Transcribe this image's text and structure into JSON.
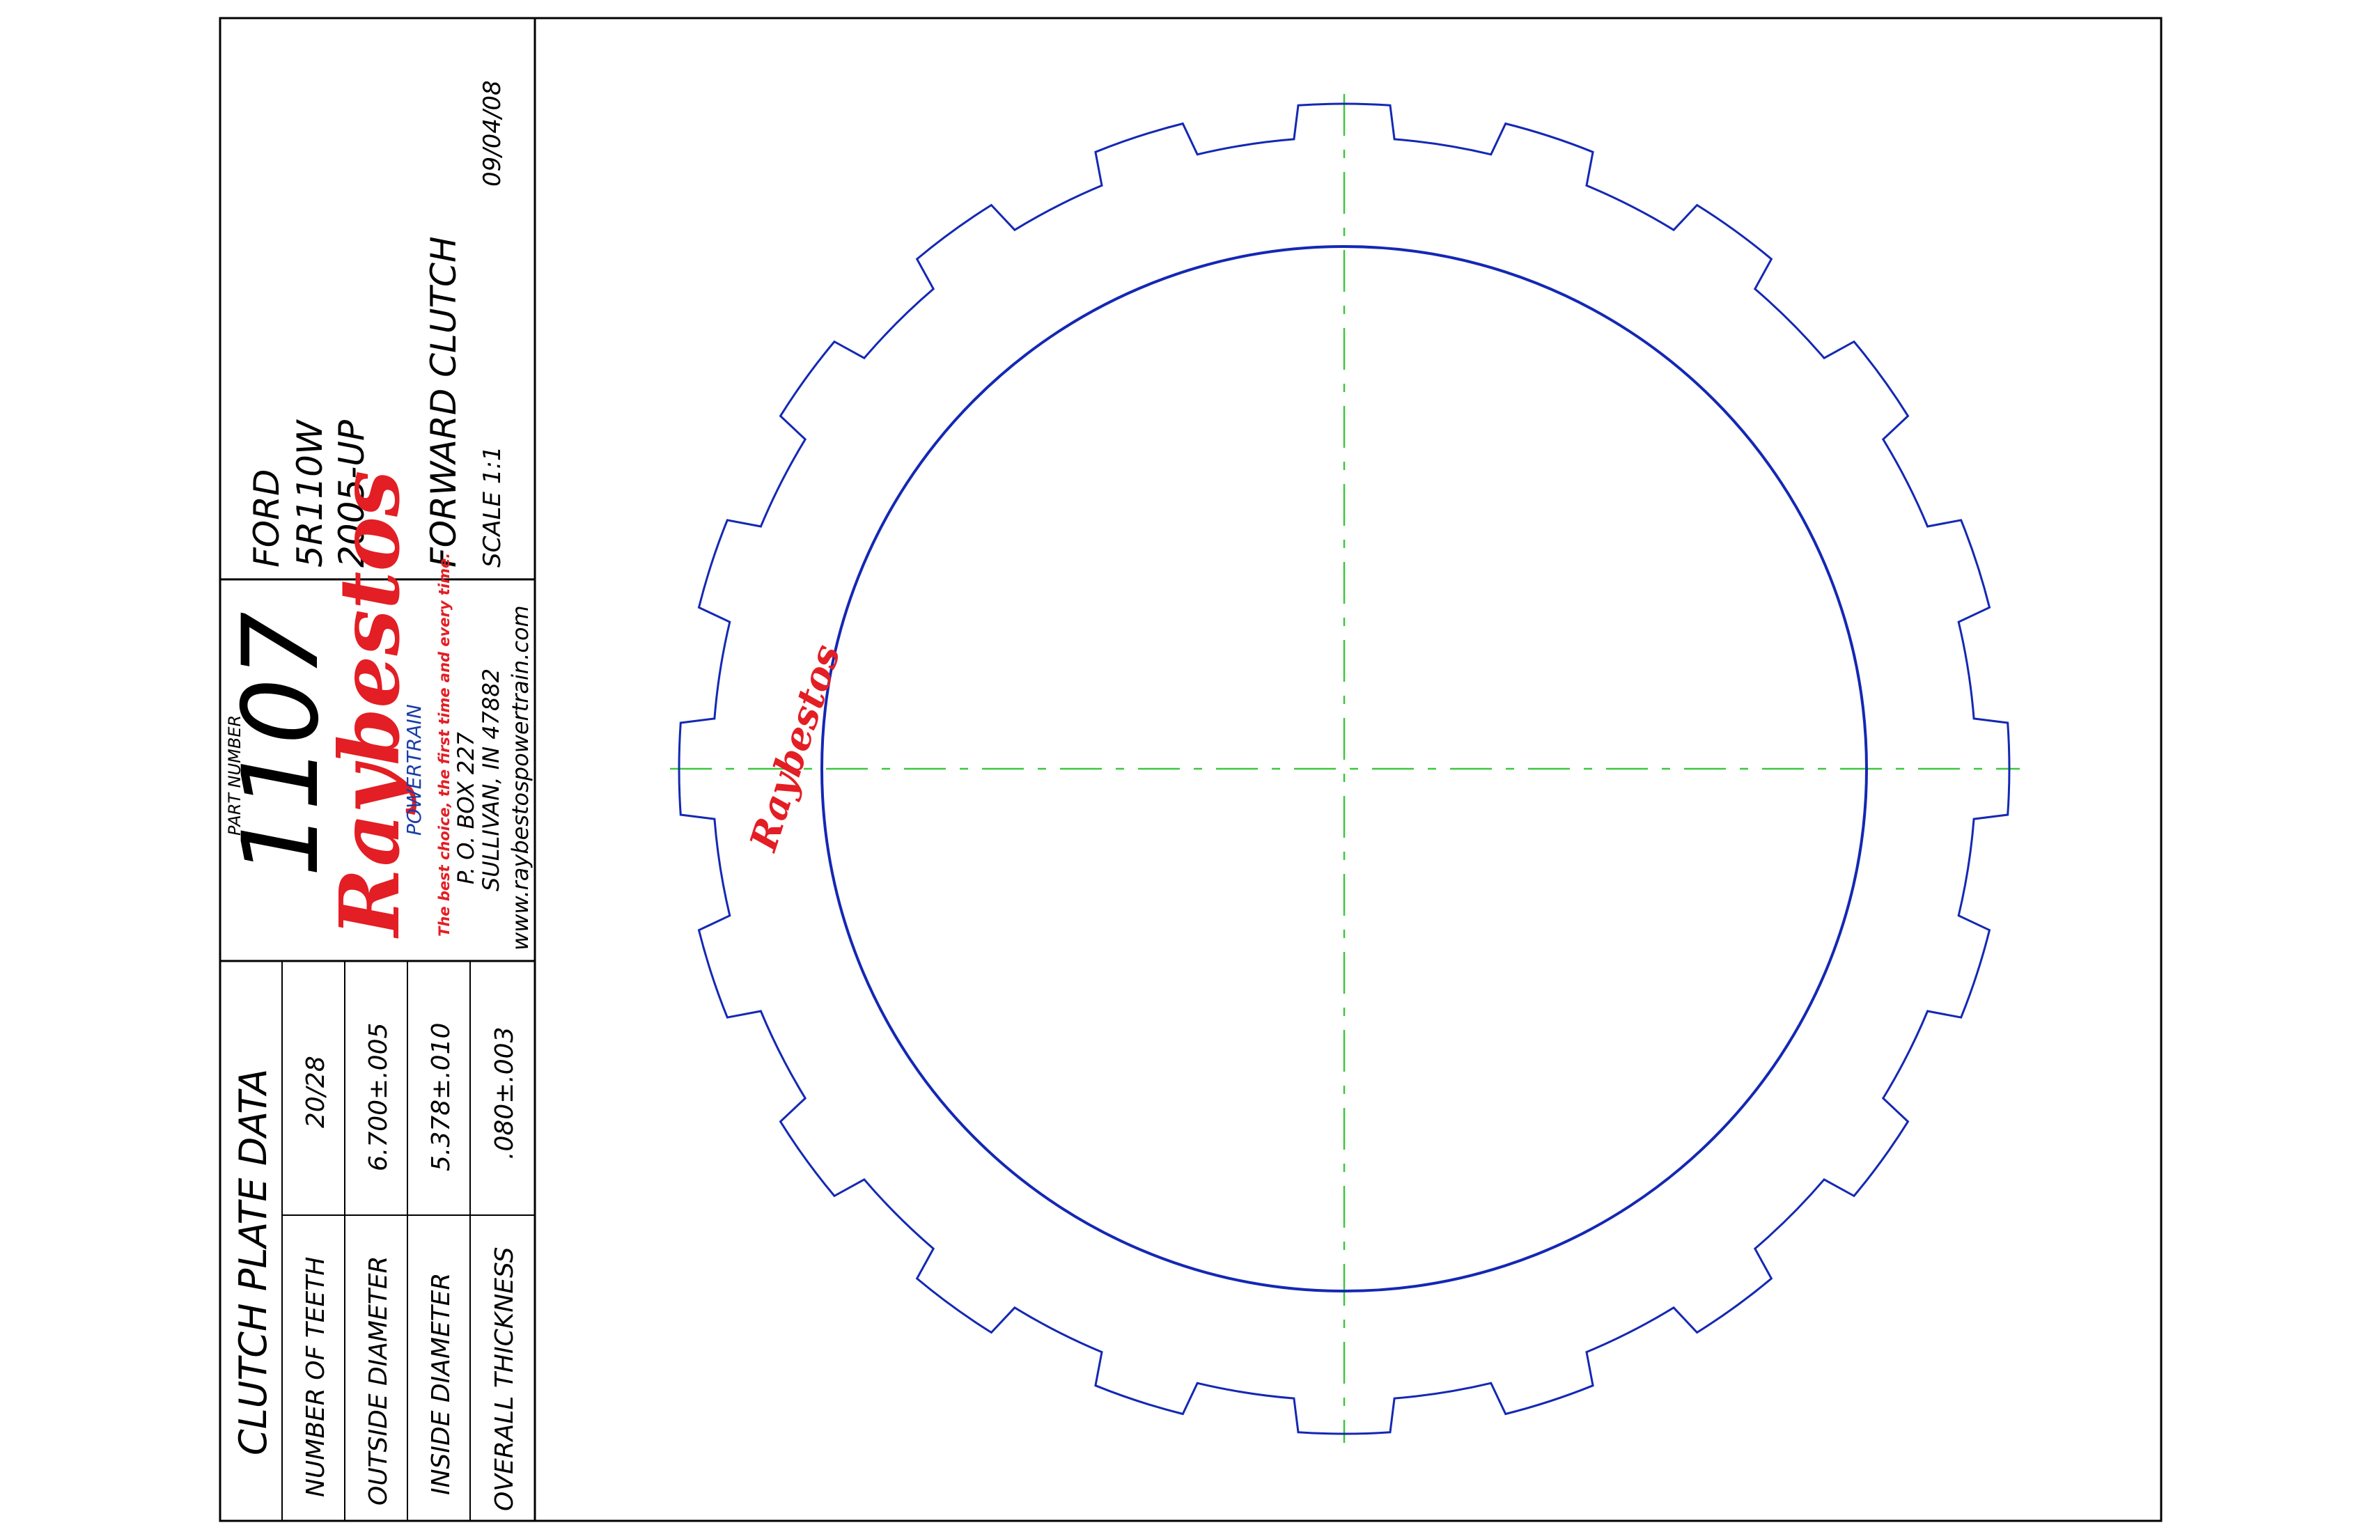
{
  "title_block": {
    "make": "FORD",
    "model": "5R110W",
    "years": "2005-UP",
    "application": "FORWARD CLUTCH",
    "scale": "SCALE 1:1",
    "date": "09/04/08"
  },
  "part": {
    "label": "PART NUMBER",
    "number": "1107"
  },
  "company": {
    "logo": "Raybestos",
    "division": "POWERTRAIN",
    "tagline": "The best choice, the first time and every time.",
    "address1": "P. O. BOX 227",
    "address2": "SULLIVAN, IN 47882",
    "website": "www.raybestospowertrain.com"
  },
  "plate_data": {
    "heading": "CLUTCH PLATE DATA",
    "rows": [
      {
        "label": "NUMBER OF TEETH",
        "value": "20/28"
      },
      {
        "label": "OUTSIDE DIAMETER",
        "value": "6.700±.005"
      },
      {
        "label": "INSIDE DIAMETER",
        "value": "5.378±.010"
      },
      {
        "label": "OVERALL THICKNESS",
        "value": ".080±.003"
      }
    ]
  },
  "drawing": {
    "plate_logo": "Raybestos",
    "line_color": "#1428b4",
    "centerline_color": "#3cc83c",
    "tooth_count": 20
  }
}
